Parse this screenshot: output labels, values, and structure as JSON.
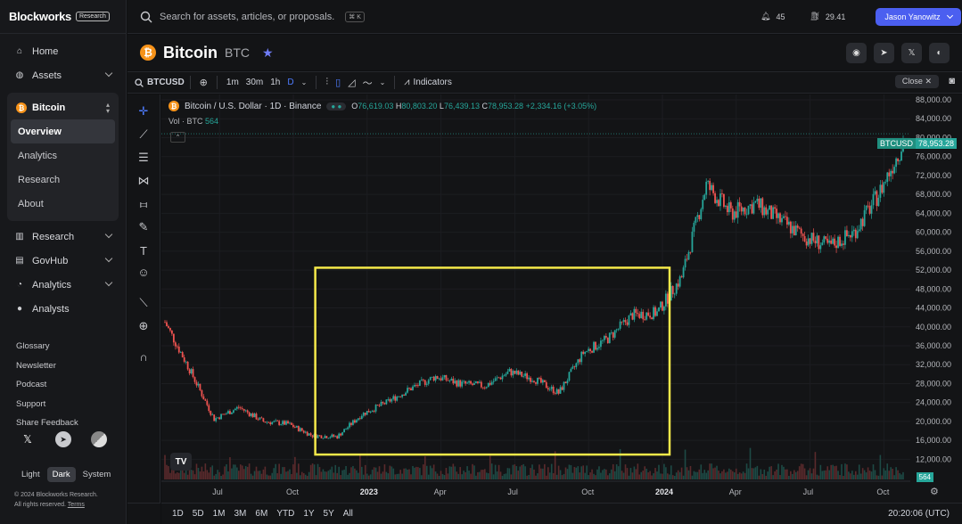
{
  "brand": {
    "name": "Blockworks",
    "badge": "Research"
  },
  "sidebar": {
    "nav": [
      {
        "label": "Home",
        "icon": "home-icon"
      },
      {
        "label": "Assets",
        "icon": "coins-icon"
      }
    ],
    "asset": {
      "label": "Bitcoin",
      "sub": [
        "Overview",
        "Analytics",
        "Research",
        "About"
      ],
      "active": "Overview"
    },
    "nav2": [
      {
        "label": "Research",
        "icon": "chart-icon"
      },
      {
        "label": "GovHub",
        "icon": "gov-icon"
      },
      {
        "label": "Analytics",
        "icon": "analytics-icon"
      },
      {
        "label": "Analysts",
        "icon": "user-icon"
      }
    ],
    "minor": [
      "Glossary",
      "Newsletter",
      "Podcast",
      "Support",
      "Share Feedback"
    ],
    "themes": [
      "Light",
      "Dark",
      "System"
    ],
    "copyright1": "© 2024 Blockworks Research.",
    "copyright2": "All rights reserved.",
    "terms": "Terms"
  },
  "topbar": {
    "search_placeholder": "Search for assets, articles, or proposals.",
    "shortcut": "⌘ K",
    "notifications": "45",
    "gas": "29.41",
    "user": "Jason Yanowitz"
  },
  "asset_header": {
    "name": "Bitcoin",
    "ticker": "BTC"
  },
  "toolbar": {
    "symbol": "BTCUSD",
    "timeframes": [
      "1m",
      "30m",
      "1h",
      "D"
    ],
    "active_tf": "D",
    "indicators": "Indicators",
    "close": "Close"
  },
  "chart_legend": {
    "title": "Bitcoin / U.S. Dollar · 1D · Binance",
    "open": "76,619.03",
    "high": "80,803.20",
    "low": "76,439.13",
    "close": "78,953.28",
    "change": "+2,334.16 (+3.05%)",
    "vol_label": "Vol · BTC",
    "vol_value": "564",
    "price_tag_symbol": "BTCUSD",
    "price_tag_value": "78,953.28",
    "vol_tag": "564"
  },
  "bottom": {
    "ranges": [
      "1D",
      "5D",
      "1M",
      "3M",
      "6M",
      "YTD",
      "1Y",
      "5Y",
      "All"
    ],
    "time": "20:20:06 (UTC)"
  },
  "chart_data": {
    "type": "line",
    "title": "Bitcoin / U.S. Dollar · 1D · Binance",
    "xlabel": "",
    "ylabel": "",
    "ylim": [
      10000,
      88000
    ],
    "y_ticks": [
      "88,000.00",
      "84,000.00",
      "80,000.00",
      "76,000.00",
      "72,000.00",
      "68,000.00",
      "64,000.00",
      "60,000.00",
      "56,000.00",
      "52,000.00",
      "48,000.00",
      "44,000.00",
      "40,000.00",
      "36,000.00",
      "32,000.00",
      "28,000.00",
      "24,000.00",
      "20,000.00",
      "16,000.00",
      "12,000.00"
    ],
    "x_ticks": [
      "Jul",
      "Oct",
      "2023",
      "Apr",
      "Jul",
      "Oct",
      "2024",
      "Apr",
      "Jul",
      "Oct"
    ],
    "x": [
      "2022-05",
      "2022-06",
      "2022-07",
      "2022-08",
      "2022-09",
      "2022-10",
      "2022-11",
      "2022-12",
      "2023-01",
      "2023-02",
      "2023-03",
      "2023-04",
      "2023-05",
      "2023-06",
      "2023-07",
      "2023-08",
      "2023-09",
      "2023-10",
      "2023-11",
      "2023-12",
      "2024-01",
      "2024-02",
      "2024-03",
      "2024-04",
      "2024-05",
      "2024-06",
      "2024-07",
      "2024-08",
      "2024-09",
      "2024-10",
      "2024-11"
    ],
    "series": [
      {
        "values": [
          41000,
          31000,
          20500,
          23000,
          20000,
          19500,
          17000,
          16800,
          21500,
          24000,
          27000,
          29500,
          28000,
          27500,
          30500,
          29000,
          26000,
          34500,
          37500,
          42500,
          43000,
          50500,
          70000,
          64000,
          66000,
          62500,
          59000,
          57000,
          60000,
          68000,
          78953
        ]
      }
    ],
    "highlight_box": {
      "x_from": "2022-11",
      "x_to": "2024-01",
      "y_from": 13000,
      "y_to": 52500
    }
  }
}
